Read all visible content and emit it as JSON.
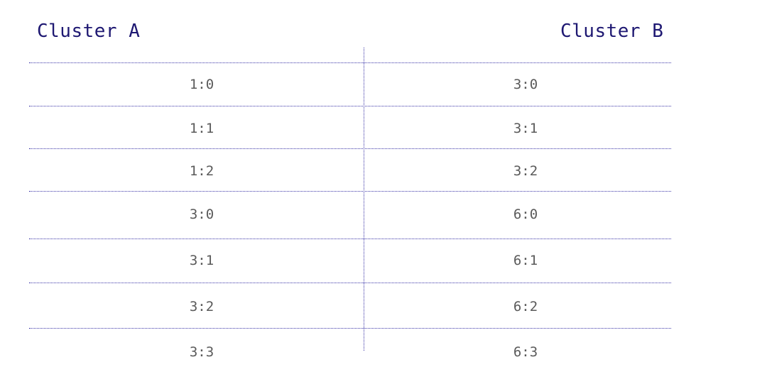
{
  "headers": {
    "left": "Cluster A",
    "right": "Cluster B"
  },
  "rows": [
    {
      "left": "1:0",
      "right": "3:0"
    },
    {
      "left": "1:1",
      "right": "3:1"
    },
    {
      "left": "1:2",
      "right": "3:2"
    },
    {
      "left": "3:0",
      "right": "6:0"
    },
    {
      "left": "3:1",
      "right": "6:1"
    },
    {
      "left": "3:2",
      "right": "6:2"
    },
    {
      "left": "3:3",
      "right": "6:3"
    }
  ],
  "colors": {
    "header": "#1e1872",
    "cell_text": "#5a5a5a",
    "rule": "#3b35a8"
  }
}
